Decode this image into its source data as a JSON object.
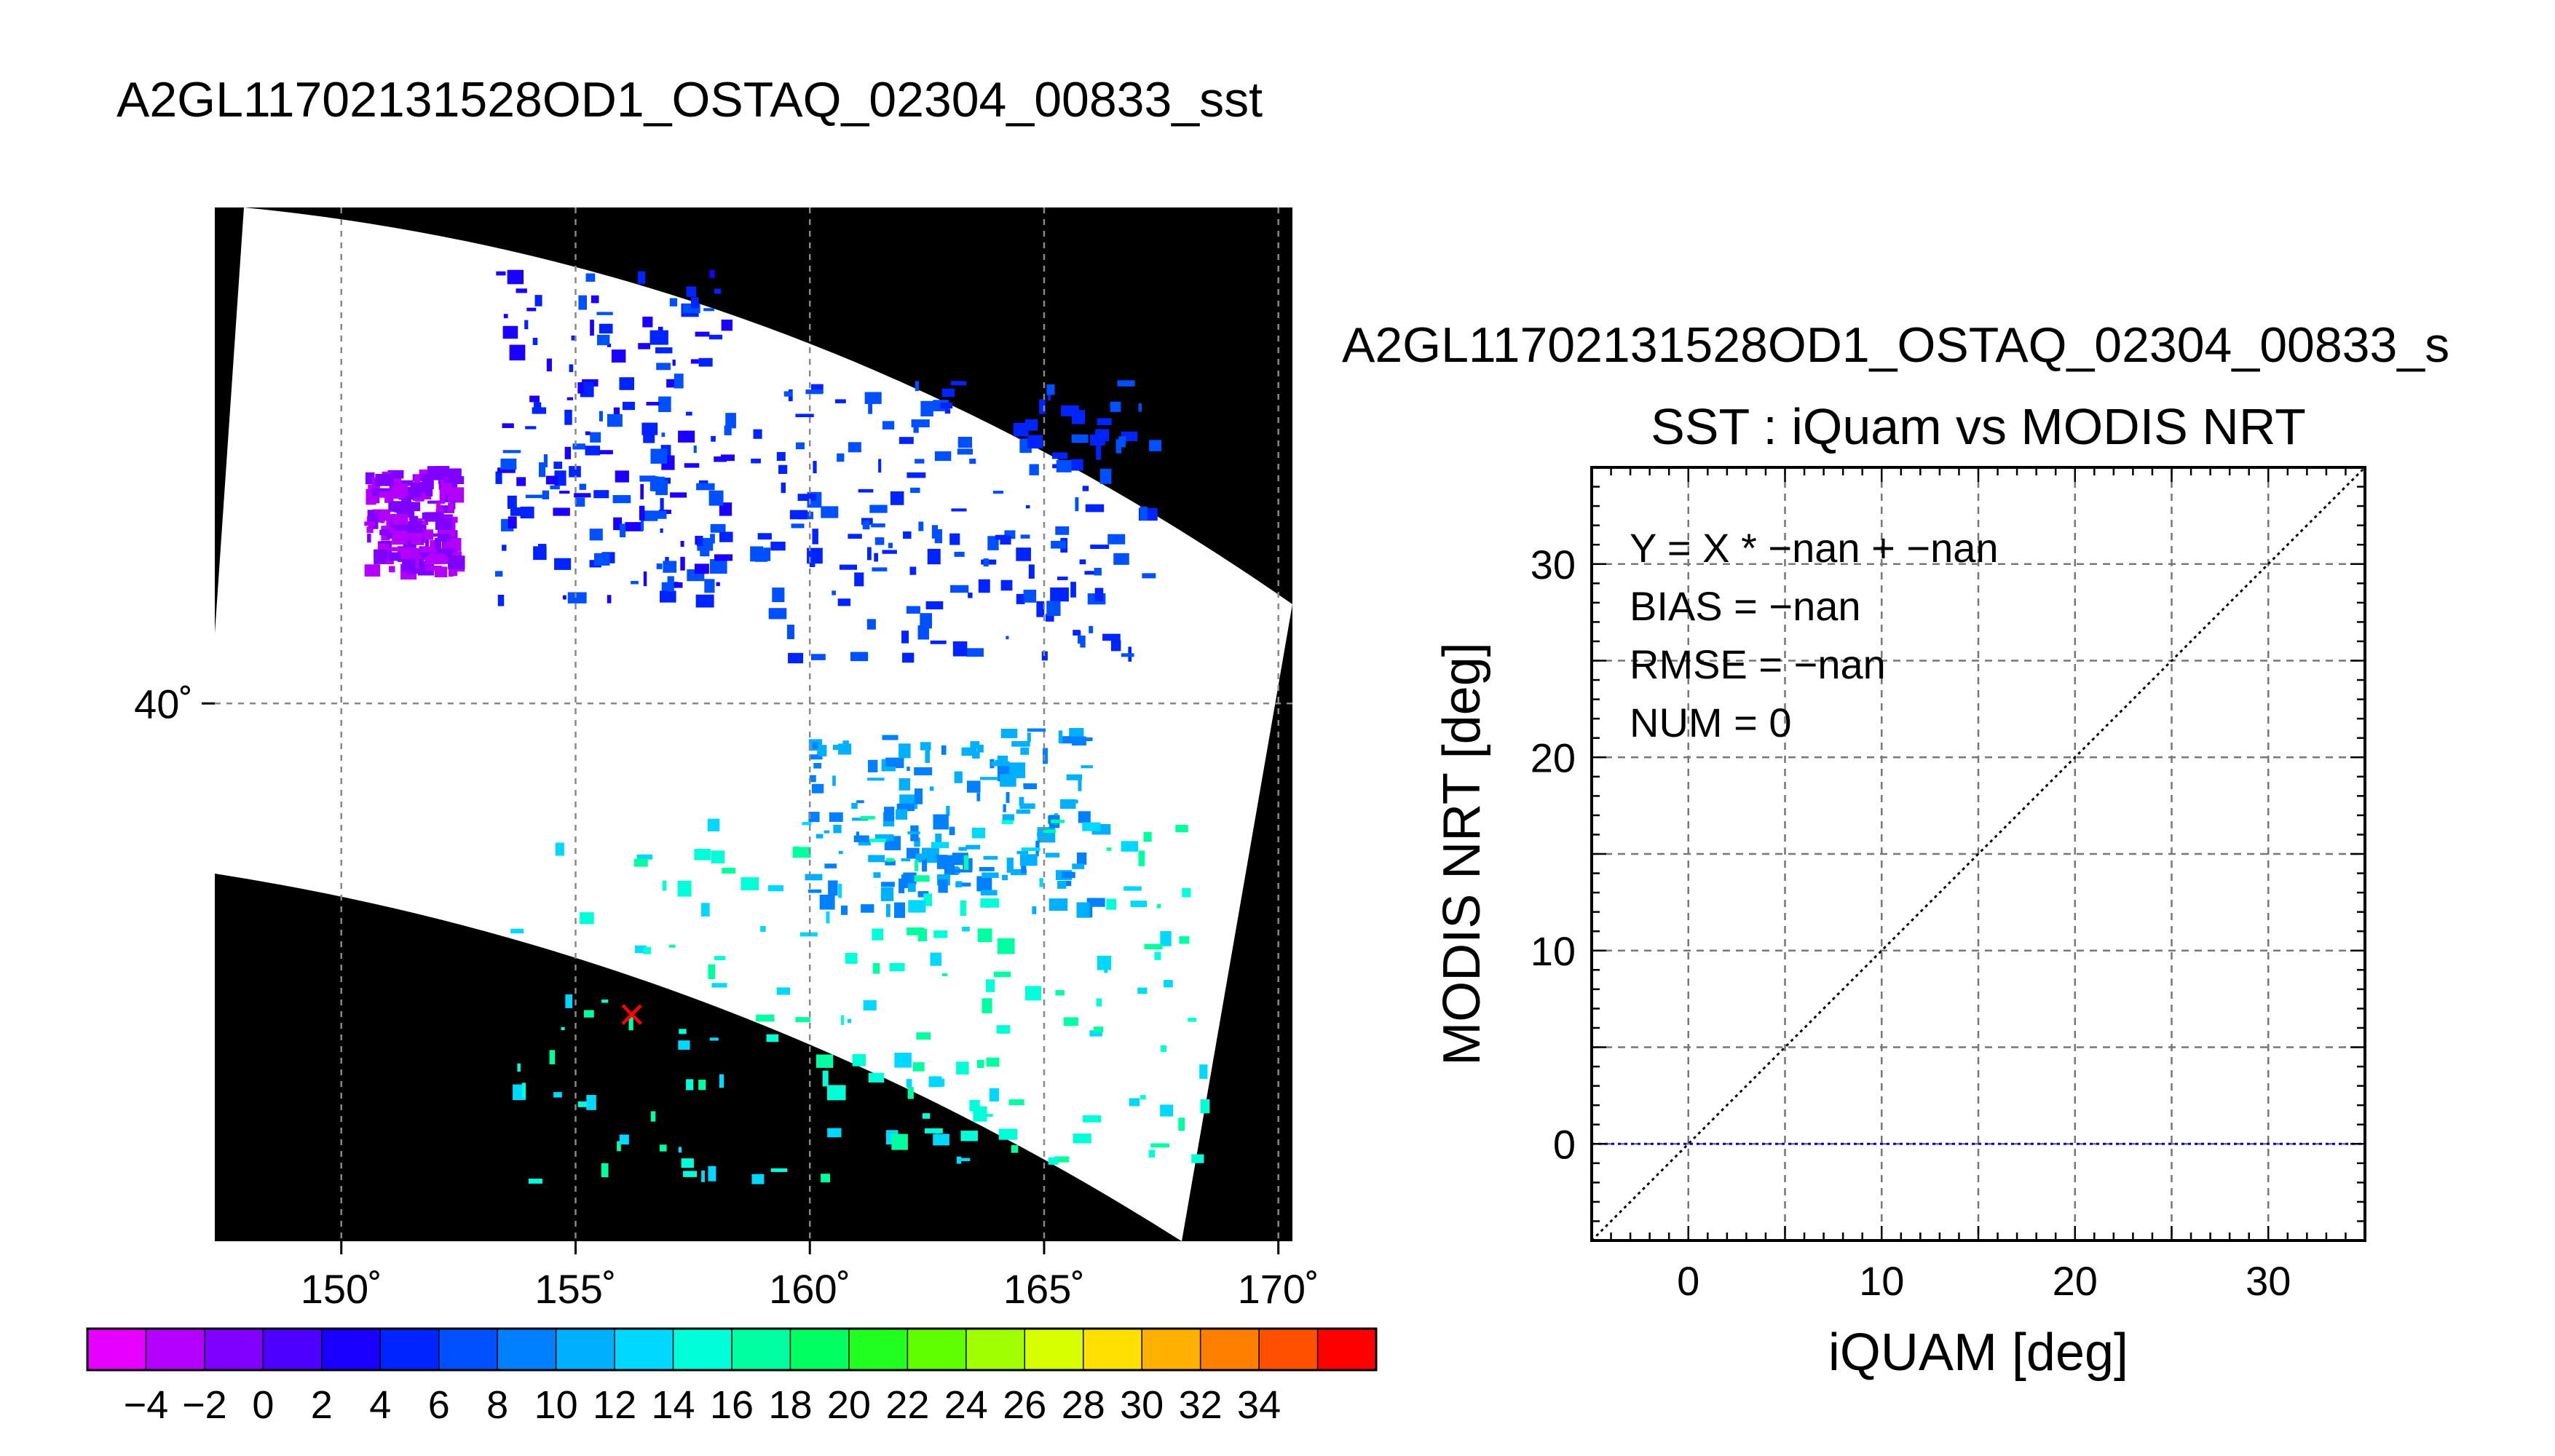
{
  "main_title": "A2GL11702131528OD1_OSTAQ_02304_00833_sst",
  "map": {
    "lon_ticks": [
      150,
      155,
      160,
      165,
      170
    ],
    "lat_ticks": [
      40
    ],
    "lon_range": [
      147.3,
      170.3
    ],
    "lat_range": [
      31.0,
      48.3
    ],
    "degree_symbol": "˚",
    "marker": {
      "symbol": "×",
      "lon": 156.2,
      "lat": 34.8,
      "color": "#ff0000"
    },
    "swath_fill_color": "#ffffff",
    "background_color": "#000000"
  },
  "colorbar": {
    "tick_labels": [
      "−4",
      "−2",
      "0",
      "2",
      "4",
      "6",
      "8",
      "10",
      "12",
      "14",
      "16",
      "18",
      "20",
      "22",
      "24",
      "26",
      "28",
      "30",
      "32",
      "34"
    ],
    "colors": [
      "#e600ff",
      "#b300ff",
      "#8000ff",
      "#4d00ff",
      "#1a00ff",
      "#0024ff",
      "#0050ff",
      "#0080ff",
      "#00b0ff",
      "#00d8ff",
      "#00ffd8",
      "#00ffa0",
      "#00ff60",
      "#20ff20",
      "#60ff00",
      "#a0ff00",
      "#d8ff00",
      "#ffe000",
      "#ffb000",
      "#ff8000",
      "#ff5000",
      "#ff0000"
    ]
  },
  "chart_data": {
    "type": "scatter",
    "title_top": "A2GL11702131528OD1_OSTAQ_02304_00833_s",
    "title": "SST : iQuam vs MODIS NRT",
    "xlabel": "iQUAM [deg]",
    "ylabel": "MODIS NRT [deg]",
    "xlim": [
      -5,
      35
    ],
    "ylim": [
      -5,
      35
    ],
    "x_ticks": [
      0,
      10,
      20,
      30
    ],
    "y_ticks": [
      0,
      10,
      20,
      30
    ],
    "grid": true,
    "points": [],
    "lines": [
      {
        "name": "1:1",
        "from": [
          -5,
          -5
        ],
        "to": [
          35,
          35
        ],
        "style": "dotted",
        "color": "#000000"
      },
      {
        "name": "fit",
        "y": 0,
        "style": "dotted",
        "color": "#0000cc"
      }
    ],
    "annotations": [
      "Y = X * −nan + −nan",
      "BIAS = −nan",
      "RMSE = −nan",
      "NUM = 0"
    ]
  }
}
